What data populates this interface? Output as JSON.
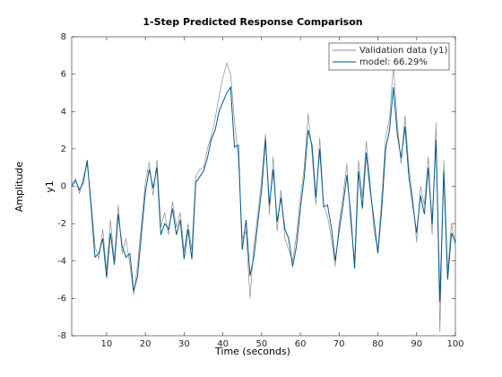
{
  "chart_data": {
    "type": "line",
    "title": "1-Step Predicted Response Comparison",
    "xlabel": "Time (seconds)",
    "ylabel": "Amplitude",
    "channel_label": "y1",
    "x": [
      1,
      2,
      3,
      4,
      5,
      6,
      7,
      8,
      9,
      10,
      11,
      12,
      13,
      14,
      15,
      16,
      17,
      18,
      19,
      20,
      21,
      22,
      23,
      24,
      25,
      26,
      27,
      28,
      29,
      30,
      31,
      32,
      33,
      34,
      35,
      36,
      37,
      38,
      39,
      40,
      41,
      42,
      43,
      44,
      45,
      46,
      47,
      48,
      49,
      50,
      51,
      52,
      53,
      54,
      55,
      56,
      57,
      58,
      59,
      60,
      61,
      62,
      63,
      64,
      65,
      66,
      67,
      68,
      69,
      70,
      71,
      72,
      73,
      74,
      75,
      76,
      77,
      78,
      79,
      80,
      81,
      82,
      83,
      84,
      85,
      86,
      87,
      88,
      89,
      90,
      91,
      92,
      93,
      94,
      95,
      96,
      97,
      98,
      99,
      100
    ],
    "series": [
      {
        "name": "Validation data (y1)",
        "color": "#8c8c8c",
        "values": [
          0.1,
          0.4,
          -0.4,
          0.5,
          1.2,
          -0.8,
          -3.2,
          -3.9,
          -2.3,
          -4.5,
          -1.8,
          -4.0,
          -1.0,
          -3.6,
          -2.8,
          -4.2,
          -5.8,
          -4.2,
          -2.0,
          0.2,
          1.3,
          -0.5,
          1.4,
          -2.2,
          -1.4,
          -2.6,
          -0.8,
          -2.2,
          -1.4,
          -3.5,
          -2.0,
          -3.4,
          0.5,
          0.9,
          1.0,
          2.0,
          2.7,
          3.6,
          4.8,
          5.8,
          6.6,
          6.0,
          3.5,
          1.5,
          -2.8,
          -2.4,
          -6.0,
          -3.2,
          -1.5,
          0.4,
          2.8,
          -1.5,
          1.6,
          -2.4,
          -0.2,
          -2.8,
          -3.4,
          -4.0,
          -2.6,
          -0.6,
          1.0,
          3.9,
          1.8,
          -1.0,
          2.6,
          -1.0,
          -1.6,
          -2.8,
          -4.3,
          -2.0,
          -0.5,
          1.2,
          -2.0,
          -4.0,
          1.4,
          -0.6,
          2.4,
          0.2,
          -2.4,
          -3.4,
          -0.6,
          2.6,
          3.6,
          6.5,
          3.4,
          1.2,
          3.8,
          1.0,
          -0.6,
          -3.0,
          0.0,
          -1.0,
          1.6,
          -2.6,
          3.4,
          -7.8,
          1.4,
          -4.6,
          -2.0,
          -3.2
        ]
      },
      {
        "name": "model: 66.29%",
        "color": "#005a8c",
        "values": [
          0,
          0.3,
          -0.2,
          0.2,
          1.4,
          -1.1,
          -3.8,
          -3.6,
          -2.8,
          -4.9,
          -2.5,
          -4.2,
          -1.5,
          -3.2,
          -3.8,
          -3.6,
          -5.6,
          -4.8,
          -2.5,
          -0.3,
          0.9,
          -0.1,
          1.0,
          -2.6,
          -2.0,
          -2.3,
          -1.2,
          -2.6,
          -1.8,
          -3.9,
          -2.3,
          -3.9,
          0.2,
          0.5,
          0.8,
          1.5,
          2.5,
          3.0,
          4.0,
          4.5,
          5.0,
          5.3,
          2.1,
          2.2,
          -3.4,
          -1.8,
          -4.8,
          -3.8,
          -2.0,
          -0.2,
          2.5,
          -1.0,
          0.9,
          -1.9,
          -0.6,
          -2.3,
          -2.8,
          -4.3,
          -3.2,
          -1.2,
          0.5,
          3.0,
          2.2,
          -0.6,
          2.0,
          -1.1,
          -1.0,
          -2.2,
          -4.0,
          -2.4,
          -1.0,
          0.6,
          -1.5,
          -4.4,
          0.8,
          -1.2,
          1.8,
          -0.2,
          -1.8,
          -3.6,
          -1.2,
          2.0,
          3.0,
          5.3,
          2.8,
          1.5,
          3.2,
          0.5,
          -1.0,
          -2.5,
          -0.5,
          -1.5,
          1.0,
          -2.0,
          2.5,
          -6.2,
          0.8,
          -5.0,
          -2.5,
          -3.0
        ]
      }
    ],
    "xlim": [
      1,
      100
    ],
    "xticks": [
      10,
      20,
      30,
      40,
      50,
      60,
      70,
      80,
      90,
      100
    ],
    "ylim": [
      -8,
      8
    ],
    "yticks": [
      -8,
      -6,
      -4,
      -2,
      0,
      2,
      4,
      6,
      8
    ],
    "grid": false,
    "legend": "upper right"
  }
}
